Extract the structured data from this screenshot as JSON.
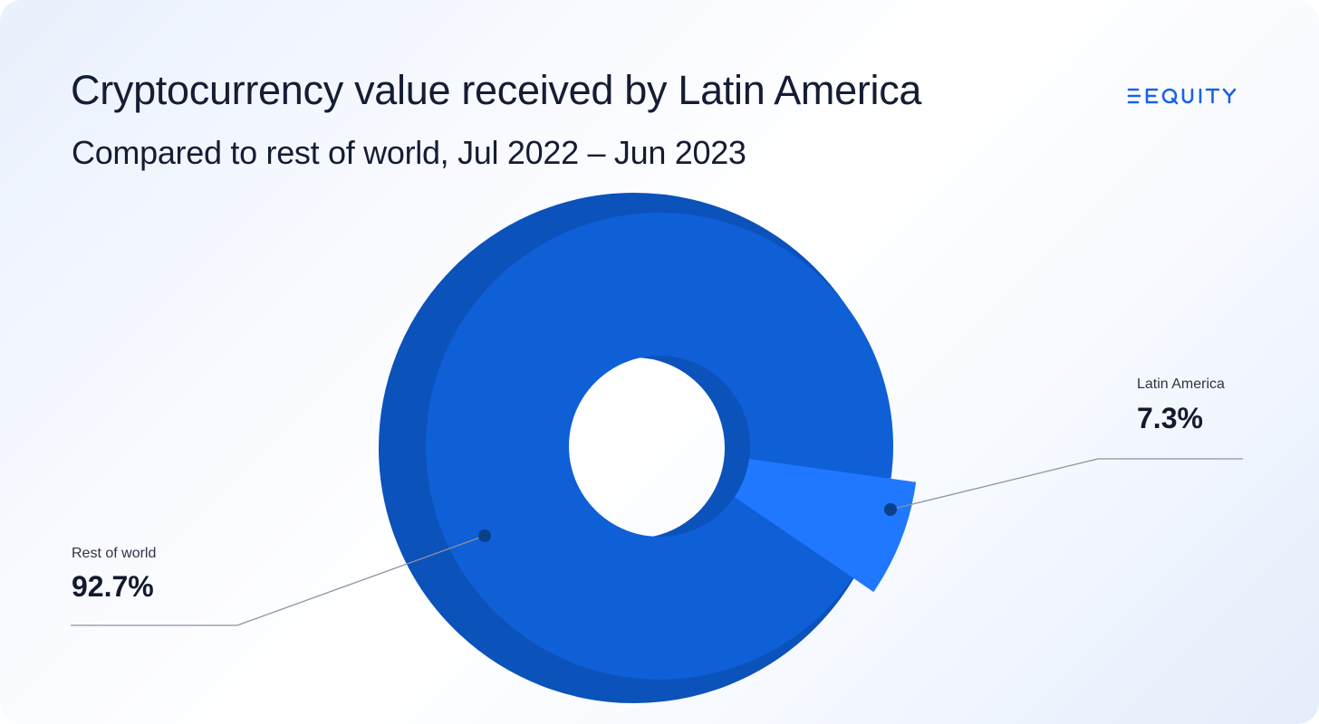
{
  "header": {
    "title": "Cryptocurrency value received by Latin America",
    "subtitle": "Compared to rest of world, Jul 2022 – Jun 2023",
    "brand": "DEQUITY"
  },
  "chart_data": {
    "type": "pie",
    "title": "Cryptocurrency value received by Latin America",
    "subtitle": "Compared to rest of world, Jul 2022 – Jun 2023",
    "slices": [
      {
        "name": "Latin America",
        "value": 7.3,
        "label": "7.3%",
        "color": "#1f78ff"
      },
      {
        "name": "Rest of world",
        "value": 92.7,
        "label": "92.7%",
        "color": "#0f5fd6"
      }
    ],
    "shadow_color": "#0b52bb",
    "legend": "callouts"
  },
  "colors": {
    "brand": "#1a62e8",
    "text": "#141d33",
    "connector": "#8a93a3",
    "dot": "#0b3f8a"
  }
}
